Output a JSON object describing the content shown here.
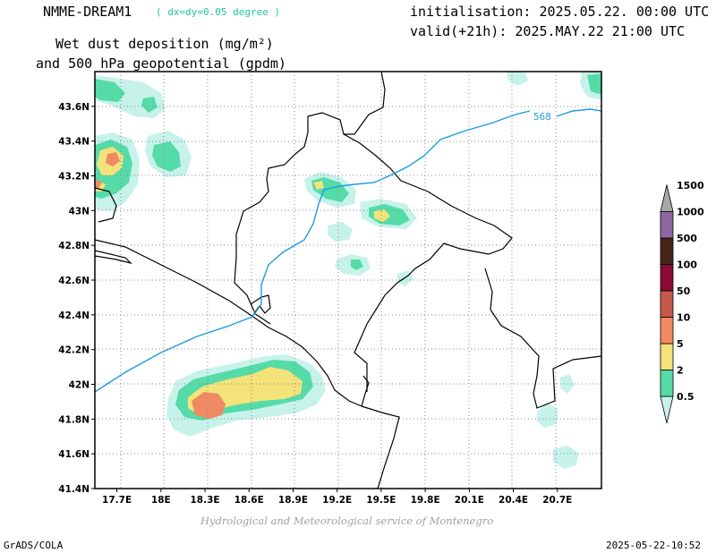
{
  "header": {
    "model": "NMME-DREAM1",
    "resolution": "( dx=dy=0.05 degree )",
    "field_line1": "Wet dust deposition (mg/m²)",
    "field_line2": "and 500 hPa geopotential (gpdm)",
    "initialisation": "initialisation: 2025.05.22. 00:00 UTC",
    "valid": "valid(+21h): 2025.MAY.22 21:00 UTC"
  },
  "map": {
    "lat_labels": [
      "43.6N",
      "43.4N",
      "43.2N",
      "43N",
      "42.8N",
      "42.6N",
      "42.4N",
      "42.2N",
      "42N",
      "41.8N",
      "41.6N",
      "41.4N"
    ],
    "lon_labels": [
      "17.7E",
      "18E",
      "18.3E",
      "18.6E",
      "18.9E",
      "19.2E",
      "19.5E",
      "19.8E",
      "20.1E",
      "20.4E",
      "20.7E"
    ],
    "lat_values": [
      43.6,
      43.4,
      43.2,
      43.0,
      42.8,
      42.6,
      42.4,
      42.2,
      42.0,
      41.8,
      41.6,
      41.4
    ],
    "lon_values": [
      17.7,
      18.0,
      18.3,
      18.6,
      18.9,
      19.2,
      19.5,
      19.8,
      20.1,
      20.4,
      20.7
    ],
    "lon_range": [
      17.55,
      21.0
    ],
    "lat_range": [
      41.4,
      43.8
    ],
    "contour_label": "568",
    "contour_color": "#1e9be0"
  },
  "legend": {
    "labels": [
      "0.5",
      "2",
      "5",
      "10",
      "50",
      "100",
      "500",
      "1000",
      "1500"
    ],
    "colors": [
      "#c6f2ea",
      "#55dba8",
      "#f4e27a",
      "#ef8a64",
      "#c4584a",
      "#8a0a38",
      "#45251a",
      "#8f66a2",
      "#a8a8a8"
    ]
  },
  "credit": "Hydrological and Meteorological service of Montenegro",
  "footer": {
    "left": "GrADS/COLA",
    "right": "2025-05-22-10:52"
  }
}
